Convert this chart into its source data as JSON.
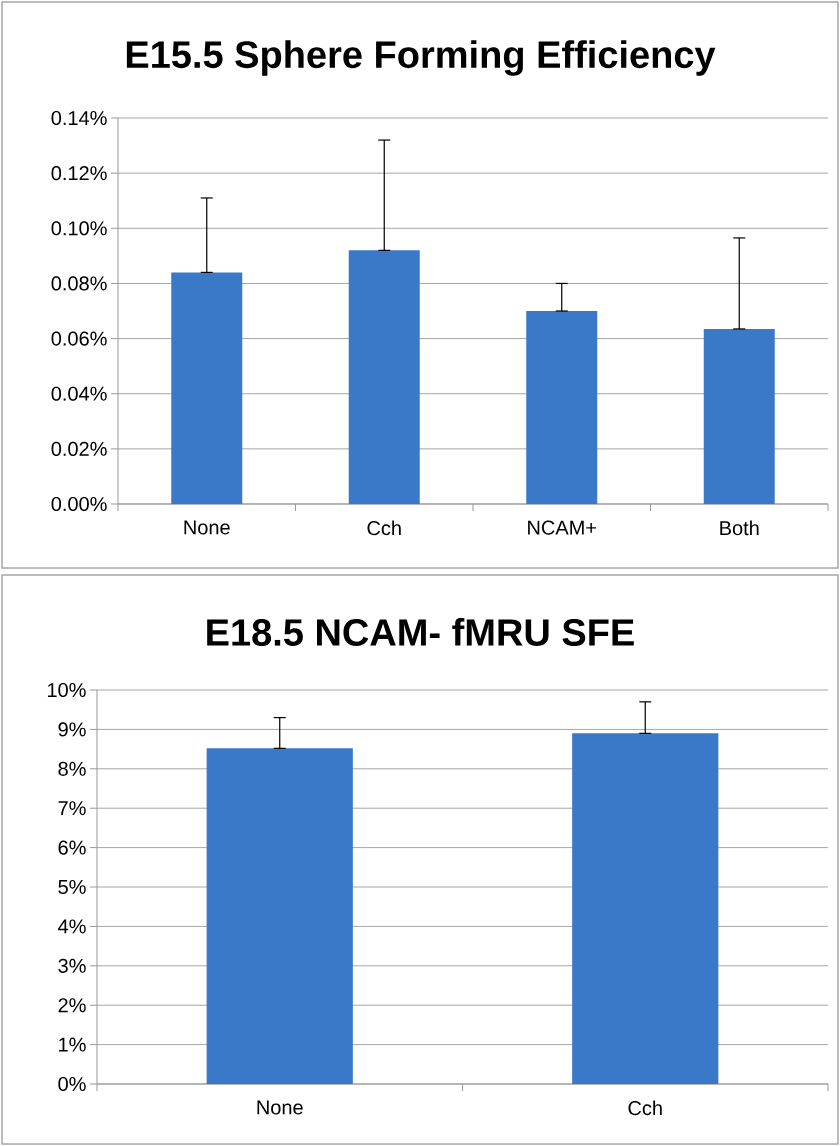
{
  "chart_data": [
    {
      "type": "bar",
      "title": "E15.5 Sphere Forming Efficiency",
      "categories": [
        "None",
        "Cch",
        "NCAM+",
        "Both"
      ],
      "values": [
        0.084,
        0.092,
        0.07,
        0.0635
      ],
      "errors": [
        [
          0.084,
          0.111
        ],
        [
          0.092,
          0.132
        ],
        [
          0.07,
          0.08
        ],
        [
          0.0635,
          0.0965
        ]
      ],
      "color": "#3a78c8",
      "ylim": [
        0,
        0.14
      ],
      "yticks": [
        {
          "value": 0,
          "label": "0.00%"
        },
        {
          "value": 0.02,
          "label": "0.02%"
        },
        {
          "value": 0.04,
          "label": "0.04%"
        },
        {
          "value": 0.06,
          "label": "0.06%"
        },
        {
          "value": 0.08,
          "label": "0.08%"
        },
        {
          "value": 0.1,
          "label": "0.10%"
        },
        {
          "value": 0.12,
          "label": "0.12%"
        },
        {
          "value": 0.14,
          "label": "0.14%"
        }
      ],
      "grid": "y"
    },
    {
      "type": "bar",
      "title": "E18.5 NCAM- fMRU SFE",
      "categories": [
        "None",
        "Cch"
      ],
      "values": [
        8.52,
        8.9
      ],
      "errors": [
        [
          8.52,
          9.3
        ],
        [
          8.9,
          9.7
        ]
      ],
      "color": "#3a78c8",
      "ylim": [
        0,
        10
      ],
      "yticks": [
        {
          "value": 0,
          "label": "0%"
        },
        {
          "value": 1,
          "label": "1%"
        },
        {
          "value": 2,
          "label": "2%"
        },
        {
          "value": 3,
          "label": "3%"
        },
        {
          "value": 4,
          "label": "4%"
        },
        {
          "value": 5,
          "label": "5%"
        },
        {
          "value": 6,
          "label": "6%"
        },
        {
          "value": 7,
          "label": "7%"
        },
        {
          "value": 8,
          "label": "8%"
        },
        {
          "value": 9,
          "label": "9%"
        },
        {
          "value": 10,
          "label": "10%"
        }
      ],
      "grid": "y"
    }
  ]
}
